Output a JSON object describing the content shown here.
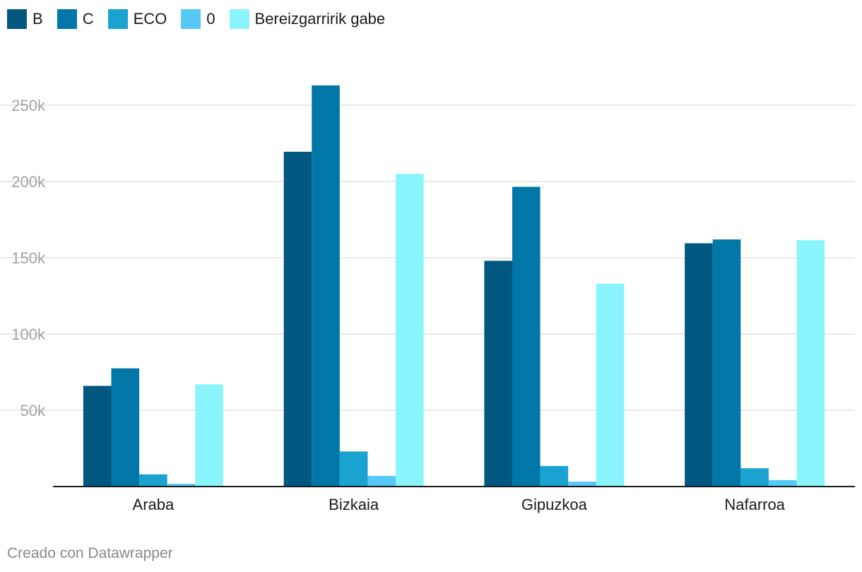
{
  "chart_data": {
    "type": "bar",
    "categories": [
      "Araba",
      "Bizkaia",
      "Gipuzkoa",
      "Nafarroa"
    ],
    "series": [
      {
        "name": "B",
        "color": "#005780",
        "values": [
          66000,
          219500,
          148000,
          159500
        ]
      },
      {
        "name": "C",
        "color": "#0077a6",
        "values": [
          77500,
          263000,
          196500,
          162000
        ]
      },
      {
        "name": "ECO",
        "color": "#1aa3d1",
        "values": [
          8000,
          23000,
          13500,
          12000
        ]
      },
      {
        "name": "0",
        "color": "#56c8f5",
        "values": [
          1800,
          7000,
          3200,
          4200
        ]
      },
      {
        "name": "Bereizgarririk gabe",
        "color": "#8af4fc",
        "values": [
          67000,
          205000,
          133000,
          161500
        ]
      }
    ],
    "ylim": [
      0,
      260000
    ],
    "yticks": [
      50000,
      100000,
      150000,
      200000,
      250000
    ],
    "ytick_labels": [
      "50k",
      "100k",
      "150k",
      "200k",
      "250k"
    ],
    "grid": true,
    "legend_position": "top-left",
    "title": "",
    "xlabel": "",
    "ylabel": ""
  },
  "footer": {
    "credit": "Creado con Datawrapper"
  }
}
